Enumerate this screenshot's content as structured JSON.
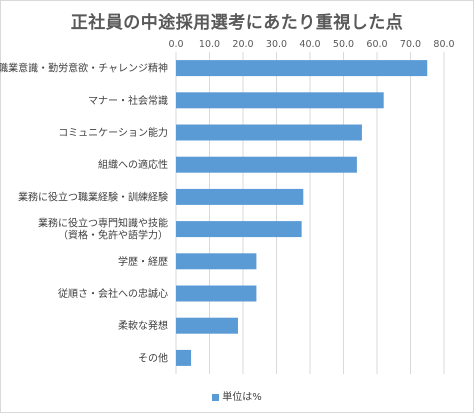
{
  "chart_data": {
    "type": "bar",
    "orientation": "horizontal",
    "title": "正社員の中途採用選考にあたり重視した点",
    "categories": [
      [
        "職業意識・勤労意欲・チャレンジ精神"
      ],
      [
        "マナー・社会常識"
      ],
      [
        "コミュニケーション能力"
      ],
      [
        "組織への適応性"
      ],
      [
        "業務に役立つ職業経験・訓練経験"
      ],
      [
        "業務に役立つ専門知識や技能",
        "（資格・免許や語学力）"
      ],
      [
        "学歴・経歴"
      ],
      [
        "従順さ・会社への忠誠心"
      ],
      [
        "柔軟な発想"
      ],
      [
        "その他"
      ]
    ],
    "series": [
      {
        "name": "単位は%",
        "values": [
          75.0,
          62.0,
          55.5,
          54.0,
          38.0,
          37.5,
          24.0,
          24.0,
          18.5,
          4.5
        ]
      }
    ],
    "xlim": [
      0,
      80
    ],
    "xticks": [
      "0.0",
      "10.0",
      "20.0",
      "30.0",
      "40.0",
      "50.0",
      "60.0",
      "70.0",
      "80.0"
    ],
    "grid": true,
    "legend": "bottom",
    "bar_color": "#5b9bd5"
  }
}
